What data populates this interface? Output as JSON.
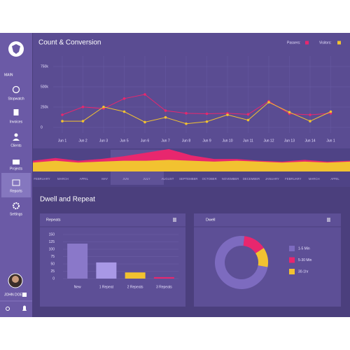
{
  "sidebar": {
    "section": "MAIN",
    "items": [
      "Stopwatch",
      "Invoices",
      "Clients",
      "Projects",
      "Reports",
      "Settings"
    ],
    "user": "JOHN DOE"
  },
  "headings": {
    "top": "Count & Conversion",
    "section": "Dwell and Repeat"
  },
  "chart_data": [
    {
      "type": "line",
      "categories": [
        "Jun 1",
        "Jun 2",
        "Jun 3",
        "Jun 5",
        "Jun 6",
        "Jun 7",
        "Jun 8",
        "Jun 9",
        "Jun 10",
        "Jun 11",
        "Jun 12",
        "Jun 13",
        "Jun 14",
        "Jun 1"
      ],
      "series": [
        {
          "name": "Passers:",
          "color": "#e8276e",
          "values": [
            155000,
            252000,
            232000,
            355000,
            406000,
            206000,
            174000,
            168000,
            174000,
            161000,
            323000,
            168000,
            155000,
            174000
          ]
        },
        {
          "name": "Visitors:",
          "color": "#f2c230",
          "values": [
            77000,
            77000,
            252000,
            194000,
            65000,
            123000,
            45000,
            71000,
            155000,
            90000,
            310000,
            187000,
            77000,
            194000
          ]
        }
      ],
      "ylim": [
        0,
        750000
      ],
      "yticks": [
        {
          "value": 0,
          "label": "0"
        },
        {
          "value": 250000,
          "label": "250k"
        },
        {
          "value": 500000,
          "label": "500k"
        },
        {
          "value": 750000,
          "label": "750k"
        }
      ],
      "grid": true
    },
    {
      "type": "area",
      "categories": [
        "FEBRUARY",
        "MARCH",
        "APRIL",
        "MAY",
        "JUN",
        "JULY",
        "AUGUST",
        "SEPTEMBER",
        "OCTOBER",
        "NOVEMBER",
        "DECEMBER",
        "JANUARY",
        "FEBRUARY",
        "MARCH",
        "APRIL"
      ],
      "series": [
        {
          "color": "#f2c230",
          "values": [
            10,
            12,
            10,
            11,
            12,
            12,
            13,
            12,
            11,
            12,
            11,
            10,
            11,
            10,
            11
          ]
        },
        {
          "color": "#e8276e",
          "values": [
            2,
            3,
            2,
            3,
            5,
            9,
            12,
            6,
            3,
            2,
            1,
            1,
            2,
            1,
            1
          ]
        }
      ],
      "stacked": true
    },
    {
      "type": "bar",
      "title": "Repeats",
      "categories": [
        "New",
        "1 Repeat",
        "2 Repeats",
        "3 Repeats"
      ],
      "values": [
        119,
        55,
        21,
        5
      ],
      "colors": [
        "#8a78c9",
        "#a898e6",
        "#f2c230",
        "#e8276e"
      ],
      "ylim": [
        0,
        150
      ],
      "yticks": [
        0,
        25,
        50,
        75,
        100,
        125,
        150
      ],
      "grid": true
    },
    {
      "type": "pie",
      "title": "Dwell",
      "donut": true,
      "categories": [
        "1-5 Min",
        "5-30 Min",
        "30-1hr"
      ],
      "values": [
        74,
        14,
        12
      ],
      "colors": [
        "#7d6bbf",
        "#e8276e",
        "#f2c230"
      ]
    }
  ]
}
